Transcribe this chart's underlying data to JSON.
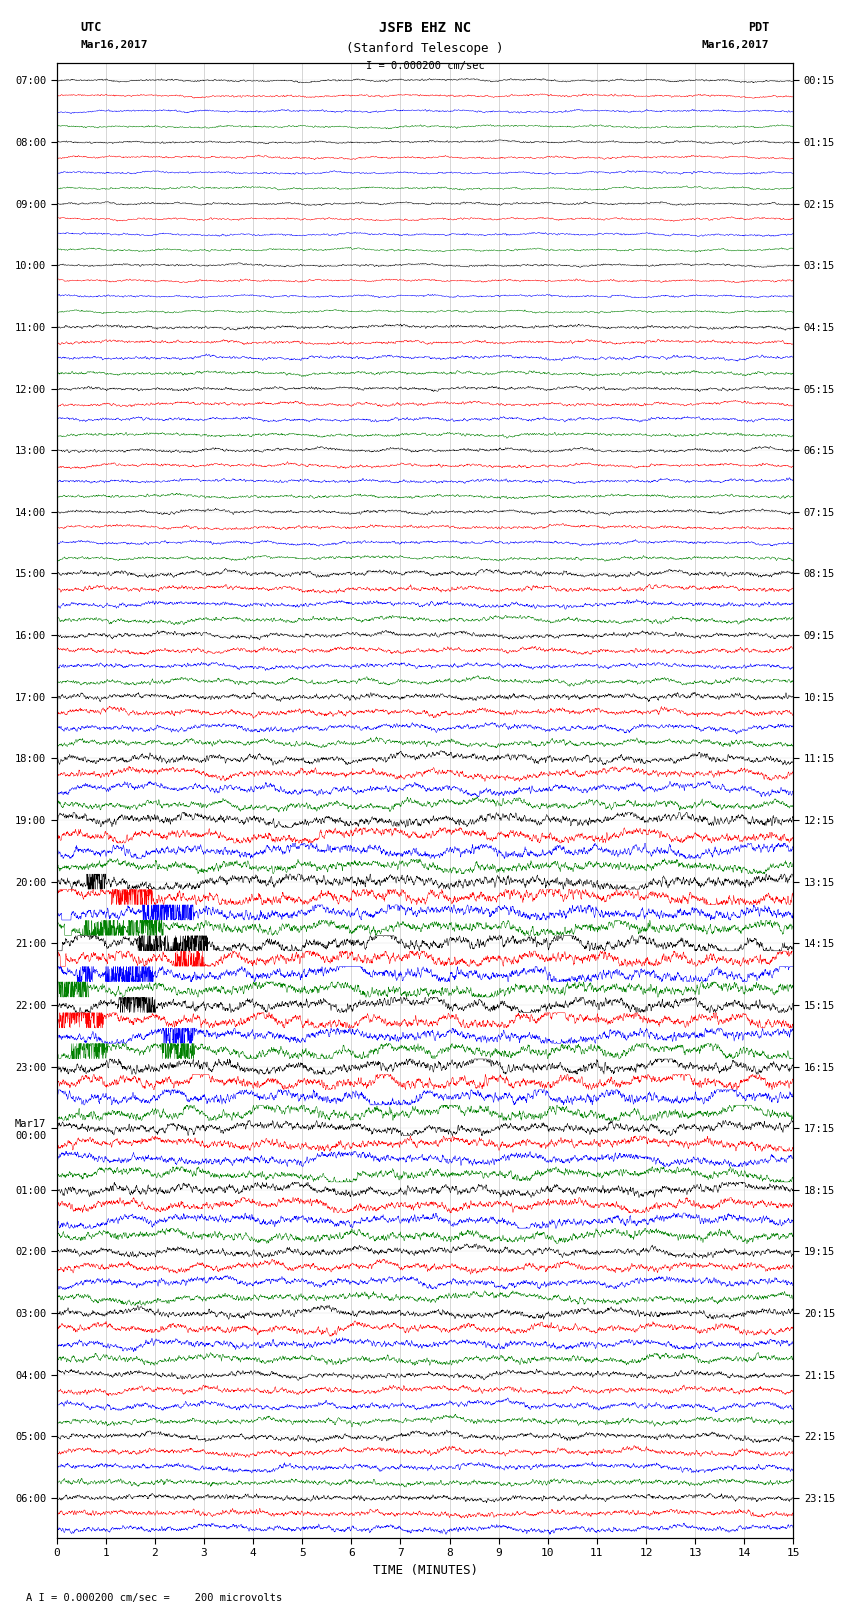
{
  "title_line1": "JSFB EHZ NC",
  "title_line2": "(Stanford Telescope )",
  "scale_label": "I = 0.000200 cm/sec",
  "xlabel": "TIME (MINUTES)",
  "footer": "A I = 0.000200 cm/sec =    200 microvolts",
  "left_times": [
    "07:00",
    "",
    "",
    "",
    "08:00",
    "",
    "",
    "",
    "09:00",
    "",
    "",
    "",
    "10:00",
    "",
    "",
    "",
    "11:00",
    "",
    "",
    "",
    "12:00",
    "",
    "",
    "",
    "13:00",
    "",
    "",
    "",
    "14:00",
    "",
    "",
    "",
    "15:00",
    "",
    "",
    "",
    "16:00",
    "",
    "",
    "",
    "17:00",
    "",
    "",
    "",
    "18:00",
    "",
    "",
    "",
    "19:00",
    "",
    "",
    "",
    "20:00",
    "",
    "",
    "",
    "21:00",
    "",
    "",
    "",
    "22:00",
    "",
    "",
    "",
    "23:00",
    "",
    "",
    "",
    "Mar17\n00:00",
    "",
    "",
    "",
    "01:00",
    "",
    "",
    "",
    "02:00",
    "",
    "",
    "",
    "03:00",
    "",
    "",
    "",
    "04:00",
    "",
    "",
    "",
    "05:00",
    "",
    "",
    "",
    "06:00",
    "",
    ""
  ],
  "right_times": [
    "00:15",
    "",
    "",
    "",
    "01:15",
    "",
    "",
    "",
    "02:15",
    "",
    "",
    "",
    "03:15",
    "",
    "",
    "",
    "04:15",
    "",
    "",
    "",
    "05:15",
    "",
    "",
    "",
    "06:15",
    "",
    "",
    "",
    "07:15",
    "",
    "",
    "",
    "08:15",
    "",
    "",
    "",
    "09:15",
    "",
    "",
    "",
    "10:15",
    "",
    "",
    "",
    "11:15",
    "",
    "",
    "",
    "12:15",
    "",
    "",
    "",
    "13:15",
    "",
    "",
    "",
    "14:15",
    "",
    "",
    "",
    "15:15",
    "",
    "",
    "",
    "16:15",
    "",
    "",
    "",
    "17:15",
    "",
    "",
    "",
    "18:15",
    "",
    "",
    "",
    "19:15",
    "",
    "",
    "",
    "20:15",
    "",
    "",
    "",
    "21:15",
    "",
    "",
    "",
    "22:15",
    "",
    "",
    "",
    "23:15",
    "",
    ""
  ],
  "trace_colors": [
    "black",
    "red",
    "blue",
    "green"
  ],
  "n_rows": 95,
  "xmin": 0,
  "xmax": 15,
  "bg_color": "white"
}
